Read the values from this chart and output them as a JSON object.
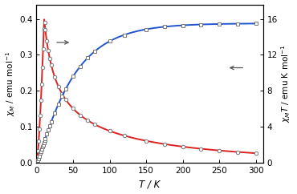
{
  "xlabel": "T / K",
  "ylabel_left": "$\\chi_M$ / emu mol$^{-1}$",
  "ylabel_right": "$\\chi_M T$ / emu K mol$^{-1}$",
  "xlim": [
    0,
    310
  ],
  "ylim_left": [
    0.0,
    0.44
  ],
  "ylim_right": [
    0,
    17.6
  ],
  "yticks_left": [
    0.0,
    0.1,
    0.2,
    0.3,
    0.4
  ],
  "yticks_right": [
    0,
    4,
    8,
    12,
    16
  ],
  "xticks": [
    0,
    50,
    100,
    150,
    200,
    250,
    300
  ],
  "chi_color": "#dd2222",
  "chiT_color": "#2255cc",
  "data_color": "#777777",
  "arrow_color": "#555555",
  "chi_peak_T": 10.5,
  "chi_peak_val": 0.398,
  "chiT_plateau": 15.5
}
